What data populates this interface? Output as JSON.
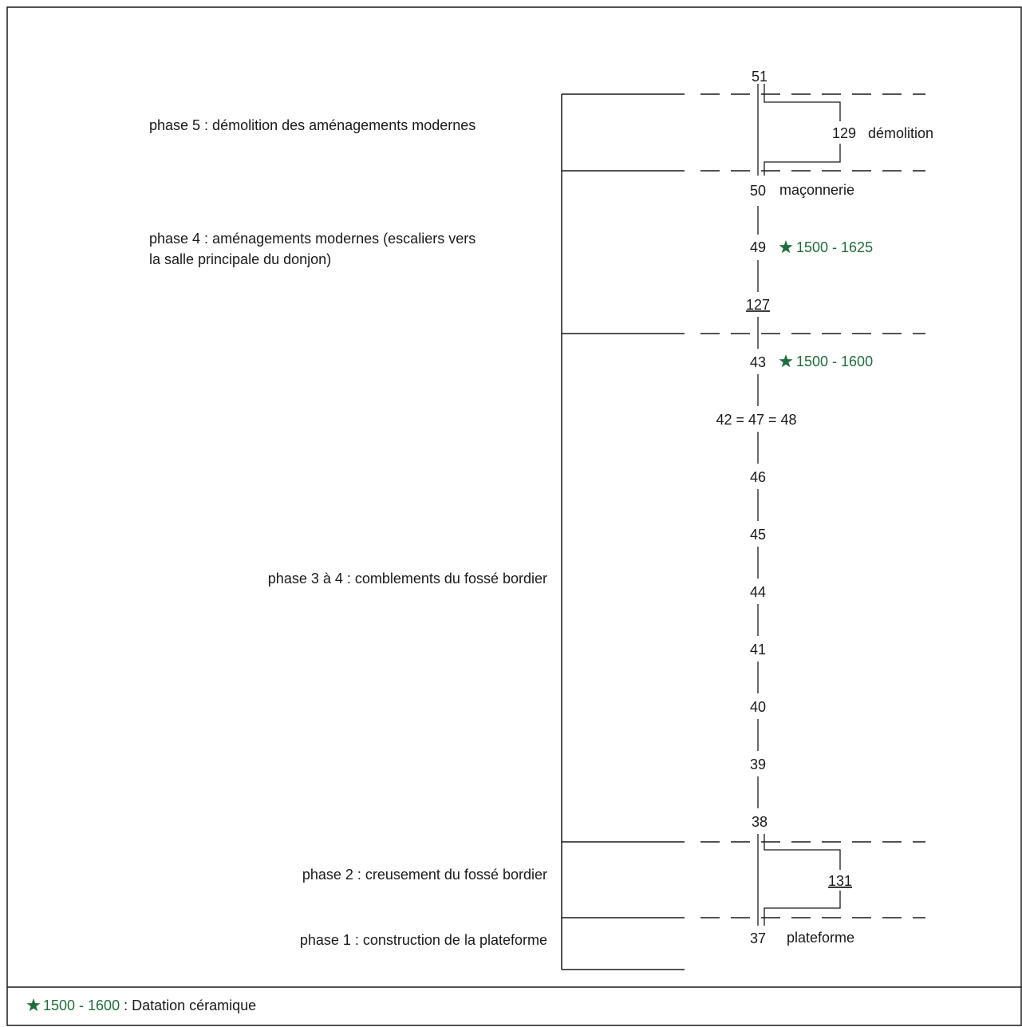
{
  "colors": {
    "line": "#1a1a1a",
    "text": "#1a1a1a",
    "dating": "#1e6e3c",
    "background": "#ffffff"
  },
  "phases": {
    "phase5": "phase 5 : démolition des aménagements modernes",
    "phase4_line1": "phase 4 : aménagements modernes (escaliers vers",
    "phase4_line2": "la salle principale du donjon)",
    "phase3": "phase 3 à 4 : comblements du fossé bordier",
    "phase2": "phase 2 : creusement du fossé bordier",
    "phase1": "phase 1 : construction de la plateforme"
  },
  "units": {
    "u51": "51",
    "u129": "129",
    "u129_label": "démolition",
    "u50": "50",
    "u50_label": "maçonnerie",
    "u49": "49",
    "u49_dating": "1500 - 1625",
    "u127": "127",
    "u43": "43",
    "u43_dating": "1500 - 1600",
    "u42_47_48": "42 = 47 = 48",
    "u46": "46",
    "u45": "45",
    "u44": "44",
    "u41": "41",
    "u40": "40",
    "u39": "39",
    "u38": "38",
    "u131": "131",
    "u37": "37",
    "u37_label": "plateforme"
  },
  "legend": {
    "icon": "star-icon",
    "dating": "1500 - 1600",
    "separator": " : ",
    "text": "Datation céramique"
  }
}
